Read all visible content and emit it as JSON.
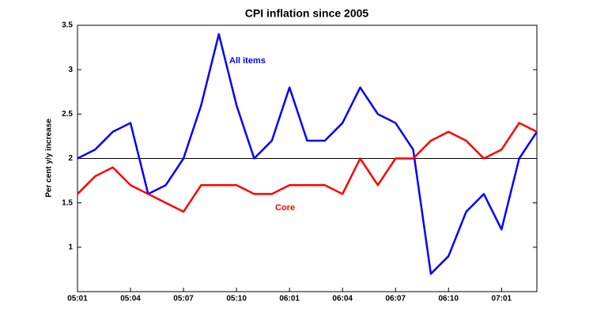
{
  "chart_data": {
    "type": "line",
    "title": "CPI inflation since 2005",
    "ylabel": "Per cent y/y increase",
    "categories": [
      "05:01",
      null,
      null,
      "05:04",
      null,
      null,
      "05:07",
      null,
      null,
      "05:10",
      null,
      null,
      "06:01",
      null,
      null,
      "06:04",
      null,
      null,
      "06:07",
      null,
      null,
      "06:10",
      null,
      null,
      "07:01",
      null,
      null
    ],
    "series": [
      {
        "name": "All items",
        "color": "#0000ff",
        "values": [
          2.0,
          2.1,
          2.3,
          2.4,
          1.6,
          1.7,
          2.0,
          2.6,
          3.4,
          2.6,
          2.0,
          2.2,
          2.8,
          2.2,
          2.2,
          2.4,
          2.8,
          2.5,
          2.4,
          2.1,
          0.7,
          0.9,
          1.4,
          1.6,
          1.2,
          2.0,
          2.3
        ]
      },
      {
        "name": "Core",
        "color": "#ff0000",
        "values": [
          1.6,
          1.8,
          1.9,
          1.7,
          1.6,
          1.5,
          1.4,
          1.7,
          1.7,
          1.7,
          1.6,
          1.6,
          1.7,
          1.7,
          1.7,
          1.6,
          2.0,
          1.7,
          2.0,
          2.0,
          2.2,
          2.3,
          2.2,
          2.0,
          2.1,
          2.4,
          2.3
        ]
      }
    ],
    "reference_line": 2,
    "ylim": [
      0.5,
      3.5
    ],
    "yticks": [
      1,
      1.5,
      2,
      2.5,
      3,
      3.5
    ],
    "grid": false
  }
}
